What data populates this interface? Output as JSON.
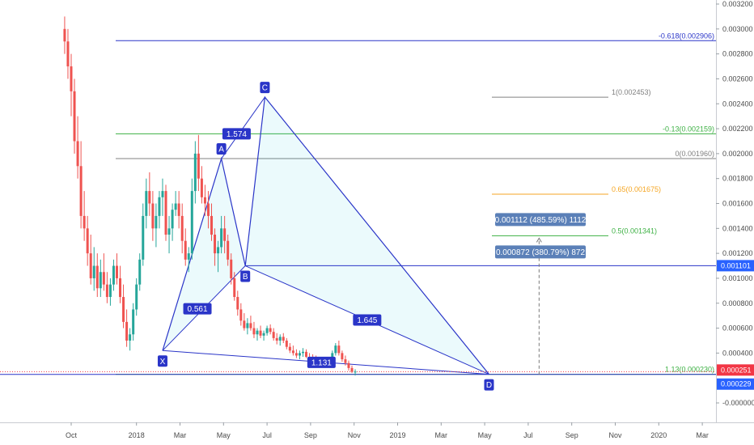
{
  "chart_data": {
    "type": "candlestick",
    "yaxis": {
      "ticks": [
        "0.003200",
        "0.003000",
        "0.002800",
        "0.002600",
        "0.002400",
        "0.002200",
        "0.002000",
        "0.001800",
        "0.001600",
        "0.001400",
        "0.001200",
        "0.001000",
        "0.000800",
        "0.000600",
        "0.000400",
        "-0.000000"
      ],
      "tick_values": [
        0.0032,
        0.003,
        0.0028,
        0.0026,
        0.0024,
        0.0022,
        0.002,
        0.0018,
        0.0016,
        0.0014,
        0.0012,
        0.001,
        0.0008,
        0.0006,
        0.0004,
        0.0
      ],
      "range": [
        -5e-05,
        0.00326
      ]
    },
    "xaxis": {
      "labels": [
        "Oct",
        "2018",
        "Mar",
        "May",
        "Jul",
        "Sep",
        "Nov",
        "2019",
        "Mar",
        "May",
        "Jul",
        "Sep",
        "Nov",
        "2020",
        "Mar"
      ],
      "months": [
        0,
        3,
        5,
        7,
        9,
        11,
        13,
        15,
        17,
        19,
        21,
        23,
        25,
        27,
        29
      ]
    },
    "price_tags": [
      {
        "value": 0.001101,
        "label": "0.001101",
        "color": "#2962ff"
      },
      {
        "value": 0.000251,
        "label": "0.000251",
        "color": "#f23645"
      },
      {
        "value": 0.000229,
        "label": "0.000229",
        "color": "#2962ff"
      }
    ],
    "fib_levels": [
      {
        "label": "-0.618(0.002906)",
        "value": 0.002906,
        "color": "#2a35c8",
        "x1": 0.0,
        "x2": 0.0,
        "span": "long"
      },
      {
        "label": "1(0.002453)",
        "value": 0.002453,
        "color": "#808080",
        "span": "short"
      },
      {
        "label": "-0.13(0.002159)",
        "value": 0.002159,
        "color": "#3cb043",
        "span": "long"
      },
      {
        "label": "0(0.001960)",
        "value": 0.00196,
        "color": "#808080",
        "span": "long"
      },
      {
        "label": "0.65(0.001675)",
        "value": 0.001675,
        "color": "#f5a623",
        "span": "short"
      },
      {
        "label": "0.5(0.001341)",
        "value": 0.001341,
        "color": "#3cb043",
        "span": "short"
      },
      {
        "label": "1.13(0.000230)",
        "value": 0.00023,
        "color": "#3cb043",
        "span": "long"
      }
    ],
    "pattern_points": [
      {
        "name": "X",
        "month": 4.2,
        "value": 0.00042
      },
      {
        "name": "A",
        "month": 6.9,
        "value": 0.00196
      },
      {
        "name": "B",
        "month": 8.0,
        "value": 0.0011
      },
      {
        "name": "C",
        "month": 8.9,
        "value": 0.002453
      },
      {
        "name": "D",
        "month": 19.2,
        "value": 0.00023
      }
    ],
    "ratios": [
      {
        "label": "1.574",
        "month": 7.6,
        "value": 0.002159
      },
      {
        "label": "0.561",
        "month": 5.8,
        "value": 0.000755
      },
      {
        "label": "1.645",
        "month": 13.6,
        "value": 0.000665
      },
      {
        "label": "1.131",
        "month": 11.5,
        "value": 0.000325
      }
    ],
    "measure": {
      "month": 21.5,
      "from": 0.000229,
      "to": 0.001341,
      "labels": [
        "0.001112 (485.59%) 1112",
        "0.000872 (380.79%) 872"
      ]
    },
    "candles": [
      [
        -0.3,
        0.003,
        0.0031,
        0.0028,
        0.0029
      ],
      [
        -0.15,
        0.0029,
        0.003,
        0.0026,
        0.0027
      ],
      [
        0.0,
        0.0027,
        0.0028,
        0.0023,
        0.0025
      ],
      [
        0.15,
        0.0025,
        0.0026,
        0.002,
        0.0021
      ],
      [
        0.3,
        0.0021,
        0.0023,
        0.0018,
        0.0019
      ],
      [
        0.45,
        0.0019,
        0.0021,
        0.0014,
        0.0015
      ],
      [
        0.6,
        0.0015,
        0.0017,
        0.0013,
        0.0014
      ],
      [
        0.75,
        0.0014,
        0.0015,
        0.0011,
        0.0012
      ],
      [
        0.9,
        0.0012,
        0.00135,
        0.00095,
        0.001
      ],
      [
        1.05,
        0.001,
        0.00125,
        0.0009,
        0.0011
      ],
      [
        1.2,
        0.0011,
        0.0012,
        0.00085,
        0.00092
      ],
      [
        1.35,
        0.00092,
        0.00115,
        0.00085,
        0.00105
      ],
      [
        1.5,
        0.00105,
        0.0012,
        0.0009,
        0.00095
      ],
      [
        1.65,
        0.00095,
        0.00105,
        0.0008,
        0.00085
      ],
      [
        1.8,
        0.00085,
        0.001,
        0.00078,
        0.00095
      ],
      [
        1.95,
        0.00095,
        0.00115,
        0.0009,
        0.0011
      ],
      [
        2.1,
        0.0011,
        0.0012,
        0.00095,
        0.001
      ],
      [
        2.25,
        0.001,
        0.0011,
        0.0008,
        0.00085
      ],
      [
        2.4,
        0.00085,
        0.00095,
        0.0006,
        0.00065
      ],
      [
        2.55,
        0.00065,
        0.00075,
        0.00045,
        0.0005
      ],
      [
        2.7,
        0.0005,
        0.0006,
        0.00042,
        0.00055
      ],
      [
        2.85,
        0.00055,
        0.0008,
        0.0005,
        0.00075
      ],
      [
        3.0,
        0.00075,
        0.001,
        0.0007,
        0.00095
      ],
      [
        3.15,
        0.00095,
        0.0012,
        0.0009,
        0.00115
      ],
      [
        3.3,
        0.00115,
        0.0016,
        0.0011,
        0.0015
      ],
      [
        3.45,
        0.0015,
        0.0018,
        0.0014,
        0.0017
      ],
      [
        3.6,
        0.0017,
        0.00185,
        0.0015,
        0.0016
      ],
      [
        3.75,
        0.0016,
        0.0017,
        0.0013,
        0.0014
      ],
      [
        3.9,
        0.0014,
        0.0016,
        0.00125,
        0.0015
      ],
      [
        4.05,
        0.0015,
        0.0017,
        0.0014,
        0.00165
      ],
      [
        4.2,
        0.00165,
        0.0018,
        0.0015,
        0.0017
      ],
      [
        4.35,
        0.0017,
        0.00175,
        0.0013,
        0.00135
      ],
      [
        4.5,
        0.00135,
        0.0015,
        0.0012,
        0.0014
      ],
      [
        4.65,
        0.0014,
        0.0016,
        0.0013,
        0.00155
      ],
      [
        4.8,
        0.00155,
        0.0017,
        0.0015,
        0.0016
      ],
      [
        4.95,
        0.0016,
        0.0017,
        0.0014,
        0.0015
      ],
      [
        5.1,
        0.0015,
        0.0016,
        0.0012,
        0.0013
      ],
      [
        5.25,
        0.0013,
        0.0014,
        0.0011,
        0.00115
      ],
      [
        5.4,
        0.00115,
        0.00125,
        0.00105,
        0.0012
      ],
      [
        5.55,
        0.0012,
        0.0018,
        0.00115,
        0.0017
      ],
      [
        5.7,
        0.0017,
        0.0021,
        0.0016,
        0.002
      ],
      [
        5.85,
        0.002,
        0.00215,
        0.0017,
        0.0018
      ],
      [
        6.0,
        0.0018,
        0.0019,
        0.0016,
        0.00165
      ],
      [
        6.15,
        0.00165,
        0.00175,
        0.0015,
        0.0016
      ],
      [
        6.3,
        0.0016,
        0.0017,
        0.0014,
        0.0015
      ],
      [
        6.45,
        0.0015,
        0.0016,
        0.0013,
        0.00135
      ],
      [
        6.6,
        0.00135,
        0.0014,
        0.0011,
        0.0012
      ],
      [
        6.75,
        0.0012,
        0.0013,
        0.00105,
        0.00125
      ],
      [
        6.9,
        0.00125,
        0.0015,
        0.0012,
        0.0014
      ],
      [
        7.05,
        0.0014,
        0.0015,
        0.0012,
        0.0013
      ],
      [
        7.2,
        0.0013,
        0.00135,
        0.0011,
        0.00115
      ],
      [
        7.35,
        0.00115,
        0.0012,
        0.00095,
        0.001
      ],
      [
        7.5,
        0.001,
        0.00105,
        0.00082,
        0.00085
      ],
      [
        7.65,
        0.00085,
        0.0009,
        0.0007,
        0.00075
      ],
      [
        7.8,
        0.00075,
        0.0008,
        0.00062,
        0.00066
      ],
      [
        7.95,
        0.00066,
        0.00072,
        0.00058,
        0.0006
      ],
      [
        8.1,
        0.0006,
        0.00068,
        0.00055,
        0.00064
      ],
      [
        8.25,
        0.00064,
        0.0007,
        0.00058,
        0.0006
      ],
      [
        8.4,
        0.0006,
        0.00065,
        0.00052,
        0.00055
      ],
      [
        8.55,
        0.00055,
        0.0006,
        0.0005,
        0.00058
      ],
      [
        8.7,
        0.00058,
        0.00062,
        0.00052,
        0.00054
      ],
      [
        8.85,
        0.00054,
        0.00058,
        0.0005,
        0.00056
      ],
      [
        9.0,
        0.00056,
        0.00062,
        0.00054,
        0.0006
      ],
      [
        9.15,
        0.0006,
        0.00063,
        0.00055,
        0.00057
      ],
      [
        9.3,
        0.00057,
        0.0006,
        0.0005,
        0.00052
      ],
      [
        9.45,
        0.00052,
        0.00056,
        0.00047,
        0.0005
      ],
      [
        9.6,
        0.0005,
        0.00055,
        0.00046,
        0.00053
      ],
      [
        9.75,
        0.00053,
        0.00056,
        0.00048,
        0.0005
      ],
      [
        9.9,
        0.0005,
        0.00052,
        0.00043,
        0.00045
      ],
      [
        10.05,
        0.00045,
        0.00048,
        0.0004,
        0.00042
      ],
      [
        10.2,
        0.00042,
        0.00046,
        0.00038,
        0.0004
      ],
      [
        10.35,
        0.0004,
        0.00043,
        0.00036,
        0.00038
      ],
      [
        10.5,
        0.00038,
        0.00042,
        0.00035,
        0.0004
      ],
      [
        10.65,
        0.0004,
        0.00044,
        0.00037,
        0.00041
      ],
      [
        10.8,
        0.00041,
        0.00043,
        0.00036,
        0.00037
      ],
      [
        10.95,
        0.00037,
        0.0004,
        0.00034,
        0.00036
      ],
      [
        11.1,
        0.00036,
        0.00039,
        0.00033,
        0.00035
      ],
      [
        11.25,
        0.00035,
        0.00038,
        0.00031,
        0.00033
      ],
      [
        11.4,
        0.00033,
        0.00037,
        0.0003,
        0.00034
      ],
      [
        11.55,
        0.00034,
        0.00036,
        0.0003,
        0.00032
      ],
      [
        11.7,
        0.00032,
        0.00035,
        0.0003,
        0.00031
      ],
      [
        11.85,
        0.00031,
        0.00034,
        0.00029,
        0.00033
      ],
      [
        12.0,
        0.00033,
        0.00042,
        0.00032,
        0.0004
      ],
      [
        12.15,
        0.0004,
        0.00048,
        0.00038,
        0.00046
      ],
      [
        12.3,
        0.00046,
        0.0005,
        0.00038,
        0.0004
      ],
      [
        12.45,
        0.0004,
        0.00042,
        0.00033,
        0.00035
      ],
      [
        12.6,
        0.00035,
        0.00038,
        0.0003,
        0.00032
      ],
      [
        12.75,
        0.00032,
        0.00034,
        0.00026,
        0.00028
      ],
      [
        12.9,
        0.00028,
        0.0003,
        0.00024,
        0.00025
      ],
      [
        13.05,
        0.00025,
        0.00027,
        0.00022,
        0.000251
      ]
    ]
  }
}
